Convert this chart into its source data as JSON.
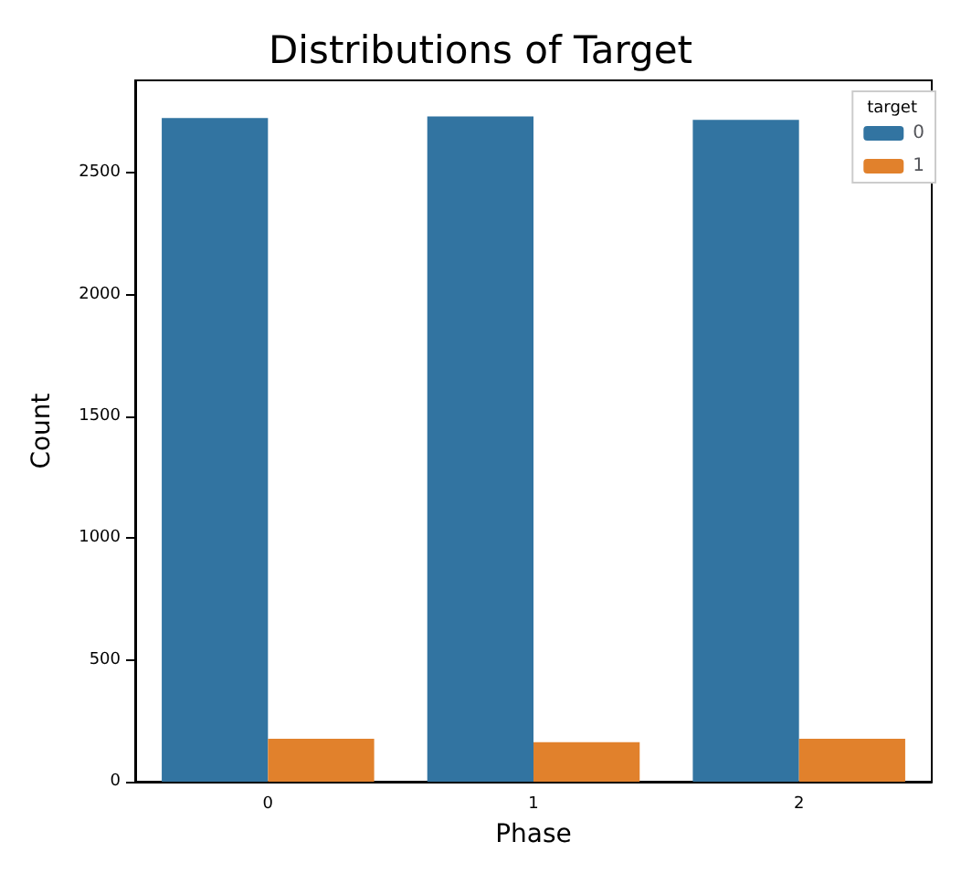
{
  "chart_data": {
    "type": "bar",
    "title": "Distributions of Target",
    "xlabel": "Phase",
    "ylabel": "Count",
    "legend_title": "target",
    "categories": [
      "0",
      "1",
      "2"
    ],
    "series": [
      {
        "name": "0",
        "color": "#3274a1",
        "values": [
          2725,
          2732,
          2718
        ]
      },
      {
        "name": "1",
        "color": "#e1812c",
        "values": [
          176,
          162,
          176
        ]
      }
    ],
    "ylim": [
      0,
      2880
    ],
    "yticks": [
      0,
      500,
      1000,
      1500,
      2000,
      2500
    ],
    "legend": "top right",
    "grid": false
  }
}
